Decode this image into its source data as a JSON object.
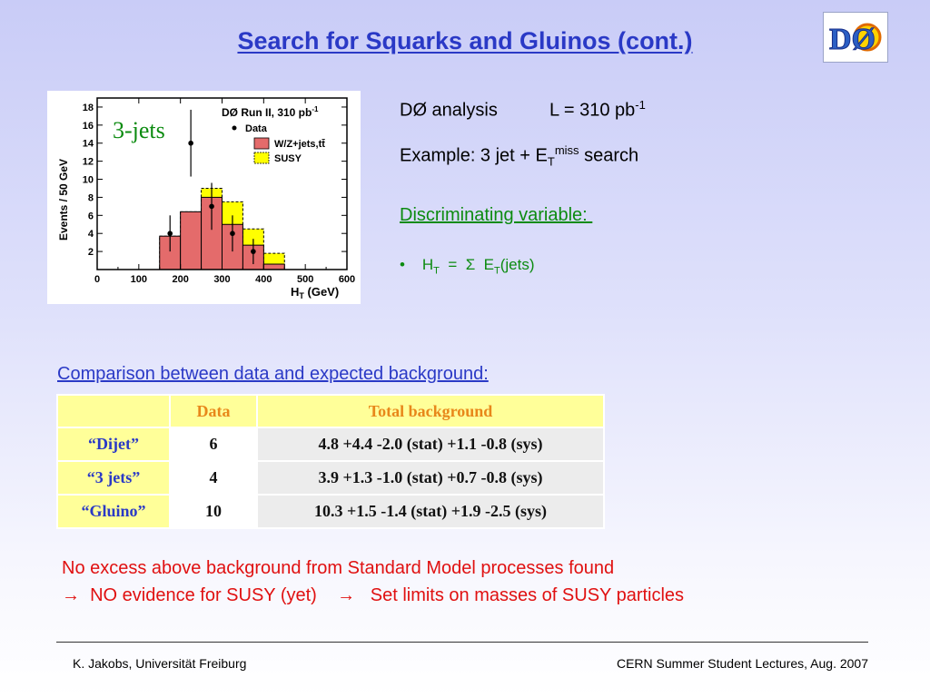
{
  "title": "Search for Squarks and Gluinos (cont.)",
  "logo": {
    "text": "DØ",
    "icon": "dzero-logo"
  },
  "plot": {
    "annotation": "3-jets",
    "header": "DØ Run II, 310 pb",
    "header_sup": "-1",
    "legend": {
      "data": "Data",
      "wz": "W/Z+jets,tt̄",
      "susy": "SUSY"
    },
    "colors": {
      "wz": "#e46b6b",
      "susy": "#ffff00",
      "data": "#000000"
    },
    "ylabel": "Events / 50 GeV",
    "xlabel": "H",
    "xlabel_sub": "T",
    "xlabel_unit": " (GeV)",
    "x_ticks": [
      "0",
      "100",
      "200",
      "300",
      "400",
      "500",
      "600"
    ],
    "y_ticks": [
      "2",
      "4",
      "6",
      "8",
      "10",
      "12",
      "14",
      "16",
      "18"
    ]
  },
  "chart_data": {
    "type": "bar",
    "title": "DØ Run II, 310 pb-1",
    "xlabel": "HT (GeV)",
    "ylabel": "Events / 50 GeV",
    "xlim": [
      0,
      600
    ],
    "ylim": [
      0,
      19
    ],
    "bin_edges": [
      150,
      200,
      250,
      300,
      350,
      400,
      450
    ],
    "series": [
      {
        "name": "W/Z+jets,tt̄",
        "values": [
          3.7,
          6.4,
          8.0,
          5.0,
          2.7,
          0.6
        ]
      },
      {
        "name": "SUSY",
        "values": [
          3.7,
          6.4,
          9.0,
          7.5,
          4.5,
          1.8
        ]
      },
      {
        "name": "Data",
        "x": [
          175,
          225,
          275,
          325,
          375
        ],
        "values": [
          4,
          14,
          7,
          4,
          2
        ],
        "errors": [
          2.0,
          3.7,
          2.6,
          2.0,
          1.4
        ]
      }
    ]
  },
  "analysis": {
    "line1_a": "DØ analysis",
    "line1_b": "L  = 310 pb",
    "line1_sup": "-1",
    "line2_a": "Example: 3 jet + E",
    "line2_sub": "T",
    "line2_sup": "miss",
    "line2_b": " search",
    "discriminating": "Discriminating variable: ",
    "bullet": "•",
    "ht_h": "H",
    "ht_sub": "T",
    "ht_eq": "  =  Σ  E",
    "ht_sub2": "T",
    "ht_tail": "(jets)"
  },
  "comparison_title": "Comparison between data and expected background:",
  "table": {
    "headers": [
      "",
      "Data",
      "Total background"
    ],
    "rows": [
      {
        "label": "“Dijet”",
        "data": "6",
        "background": "4.8 +4.4 -2.0 (stat) +1.1 -0.8 (sys)"
      },
      {
        "label": "“3 jets”",
        "data": "4",
        "background": "3.9 +1.3 -1.0 (stat) +0.7 -0.8 (sys)"
      },
      {
        "label": "“Gluino”",
        "data": "10",
        "background": "10.3 +1.5 -1.4 (stat) +1.9 -2.5 (sys)"
      }
    ]
  },
  "conclusion": {
    "line1": "No excess above background from Standard Model processes found",
    "line2": "→  NO evidence for SUSY (yet)    →   Set limits on masses of SUSY particles"
  },
  "footer": {
    "left": "K. Jakobs,  Universität Freiburg",
    "right": "CERN Summer Student Lectures,  Aug. 2007"
  }
}
